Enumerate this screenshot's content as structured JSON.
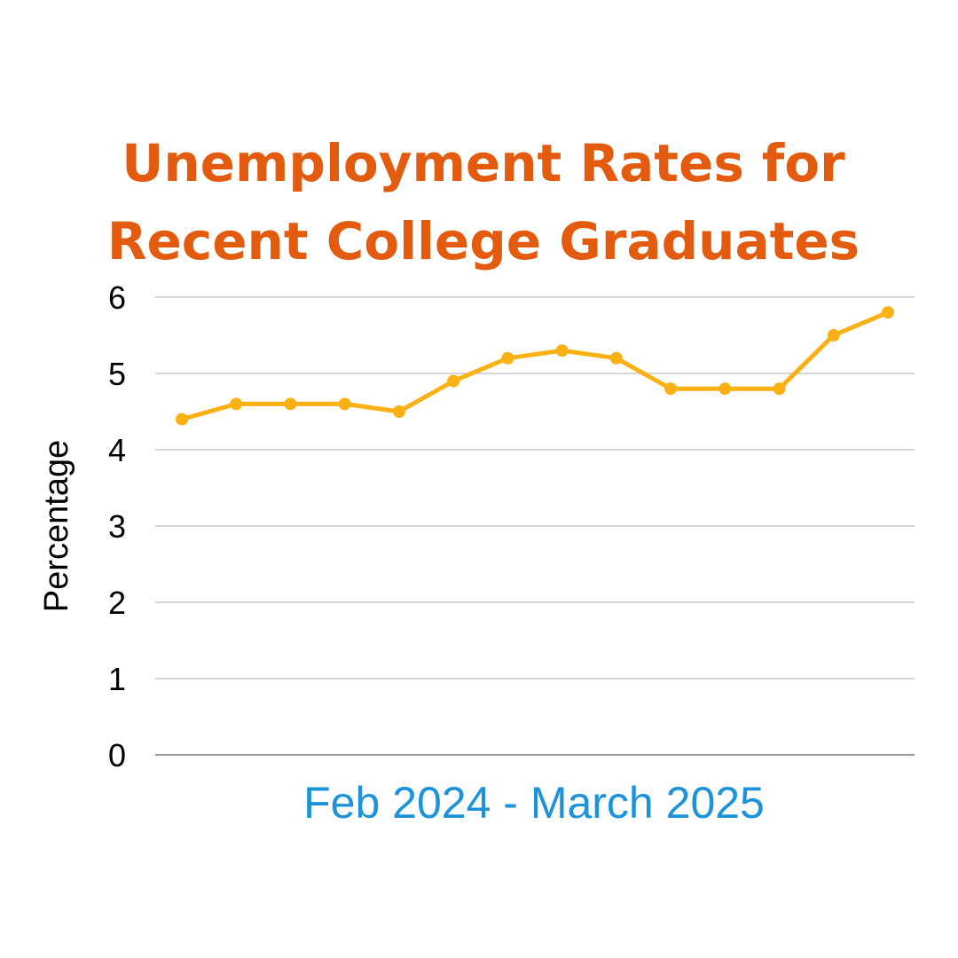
{
  "chart_data": {
    "type": "line",
    "title_lines": [
      "Unemployment Rates for",
      "Recent College Graduates"
    ],
    "xlabel": "Feb 2024 - March 2025",
    "ylabel": "Percentage",
    "ylim": [
      0,
      6
    ],
    "yticks": [
      "0",
      "1",
      "2",
      "3",
      "4",
      "5",
      "6"
    ],
    "grid": true,
    "series": [
      {
        "values": [
          4.4,
          4.6,
          4.6,
          4.6,
          4.5,
          4.9,
          5.2,
          5.3,
          5.2,
          4.8,
          4.8,
          4.8,
          5.5,
          5.8
        ],
        "color": "#fbb013"
      }
    ],
    "colors": {
      "title": "#e35b0e",
      "xlabel": "#1a93db",
      "gridline": "#c8c8c8",
      "baseline": "#999999"
    }
  }
}
